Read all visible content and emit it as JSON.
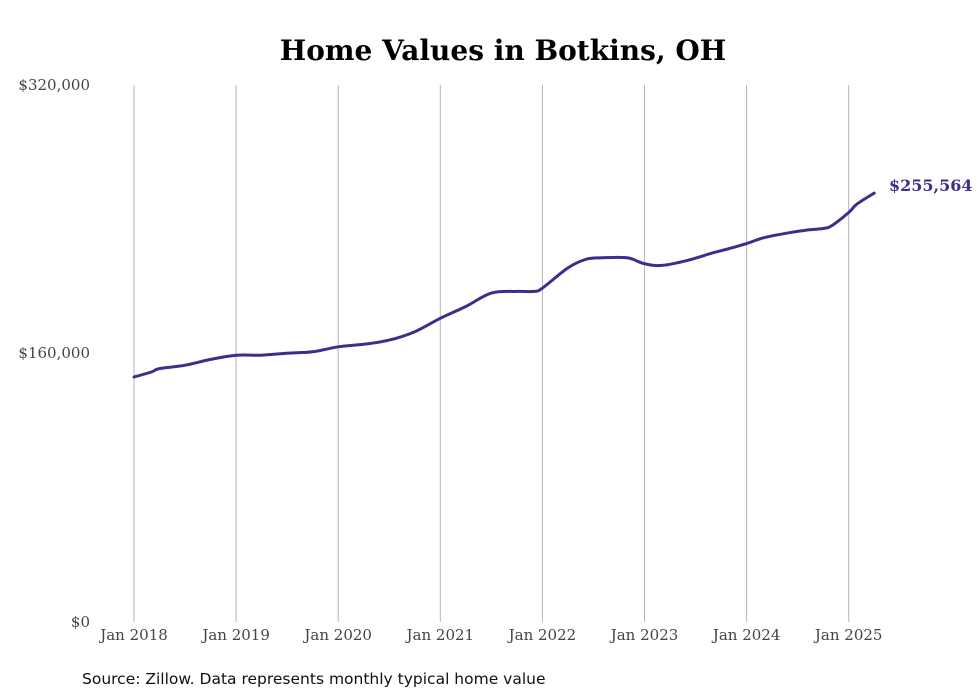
{
  "chart_data": {
    "type": "line",
    "title": "Home Values in Botkins, OH",
    "xlabel": "",
    "ylabel": "",
    "x_ticks": [
      "Jan 2018",
      "Jan 2019",
      "Jan 2020",
      "Jan 2021",
      "Jan 2022",
      "Jan 2023",
      "Jan 2024",
      "Jan 2025"
    ],
    "y_ticks": [
      "$0",
      "$160,000",
      "$320,000"
    ],
    "ylim": [
      0,
      320000
    ],
    "grid": "vertical",
    "line_color": "#3b2f8a",
    "end_label": "$255,564",
    "series": [
      {
        "values": [
          [
            2018.0,
            146000
          ],
          [
            2018.17,
            149000
          ],
          [
            2018.25,
            151000
          ],
          [
            2018.5,
            153000
          ],
          [
            2018.75,
            156500
          ],
          [
            2019.0,
            159000
          ],
          [
            2019.25,
            159000
          ],
          [
            2019.5,
            160200
          ],
          [
            2019.75,
            161000
          ],
          [
            2020.0,
            164000
          ],
          [
            2020.25,
            165500
          ],
          [
            2020.5,
            168000
          ],
          [
            2020.75,
            173000
          ],
          [
            2021.0,
            181000
          ],
          [
            2021.25,
            188000
          ],
          [
            2021.5,
            196000
          ],
          [
            2021.75,
            197000
          ],
          [
            2021.92,
            197000
          ],
          [
            2022.0,
            199000
          ],
          [
            2022.25,
            211000
          ],
          [
            2022.42,
            216000
          ],
          [
            2022.58,
            217000
          ],
          [
            2022.83,
            217000
          ],
          [
            2023.0,
            213500
          ],
          [
            2023.17,
            212500
          ],
          [
            2023.42,
            215500
          ],
          [
            2023.67,
            220000
          ],
          [
            2023.83,
            222500
          ],
          [
            2024.0,
            225500
          ],
          [
            2024.17,
            229000
          ],
          [
            2024.42,
            232000
          ],
          [
            2024.58,
            233500
          ],
          [
            2024.75,
            234500
          ],
          [
            2024.83,
            236000
          ],
          [
            2025.0,
            244000
          ],
          [
            2025.08,
            249000
          ],
          [
            2025.25,
            255564
          ]
        ]
      }
    ]
  },
  "source_note": "Source: Zillow. Data represents monthly typical home value"
}
